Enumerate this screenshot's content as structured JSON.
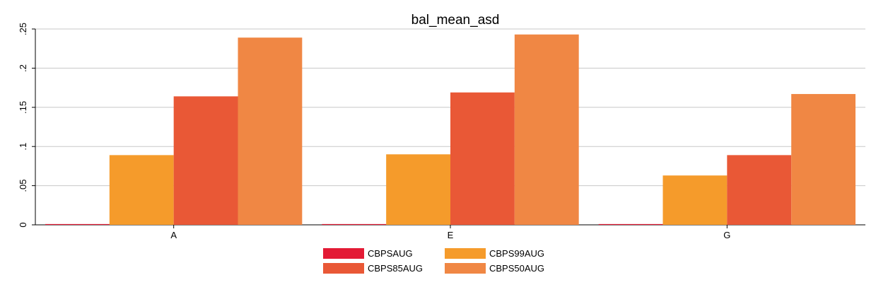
{
  "chart_data": {
    "type": "bar",
    "title": "bal_mean_asd",
    "xlabel": "",
    "ylabel": "",
    "categories": [
      "A",
      "E",
      "G"
    ],
    "series": [
      {
        "name": "CBPSAUG",
        "values": [
          0.001,
          0.001,
          0.001
        ],
        "color": "#e31a35"
      },
      {
        "name": "CBPS99AUG",
        "values": [
          0.089,
          0.09,
          0.063
        ],
        "color": "#f59b2b"
      },
      {
        "name": "CBPS85AUG",
        "values": [
          0.164,
          0.169,
          0.089
        ],
        "color": "#e95836"
      },
      {
        "name": "CBPS50AUG",
        "values": [
          0.239,
          0.243,
          0.167
        ],
        "color": "#f08744"
      }
    ],
    "ylim": [
      0,
      0.25
    ],
    "yticks": [
      0,
      0.05,
      0.1,
      0.15,
      0.2,
      0.25
    ],
    "ytick_labels": [
      "0",
      ".05",
      ".1",
      ".15",
      ".2",
      ".25"
    ],
    "grid": true,
    "legend_position": "bottom",
    "legend_order": [
      "CBPSAUG",
      "CBPS99AUG",
      "CBPS85AUG",
      "CBPS50AUG"
    ]
  }
}
